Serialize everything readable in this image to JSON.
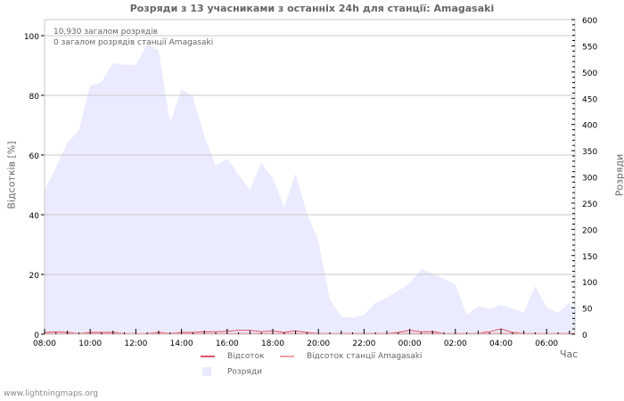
{
  "title": "Розряди з 13 учасниками з останніх 24h для станції: Amagasaki",
  "annotations": {
    "total_strikes": "10,930 загалом розрядів",
    "station_strikes": "0 загалом розрядів станції Amagasaki"
  },
  "axes": {
    "left_label": "Відсотків   [%]",
    "right_label": "Розряди",
    "x_label": "Час"
  },
  "legend": {
    "percent": "Відсоток",
    "station_percent": "Відсоток станції Amagasaki",
    "strikes": "Розряди"
  },
  "watermark": "www.lightningmaps.org",
  "colors": {
    "area": "#ebebff",
    "percent_line": "#dd5566",
    "station_line": "#f4a0a8",
    "grid": "#c8c8c8"
  },
  "chart_data": {
    "type": "area",
    "title": "Розряди з 13 учасниками з останніх 24h для станції: Amagasaki",
    "xlabel": "Час",
    "ylabel": "Відсотків [%]",
    "y2label": "Розряди",
    "ylim": [
      0,
      105
    ],
    "y2lim": [
      0,
      600
    ],
    "x_tick_labels": [
      "08:00",
      "10:00",
      "12:00",
      "14:00",
      "16:00",
      "18:00",
      "20:00",
      "22:00",
      "00:00",
      "02:00",
      "04:00",
      "06:00"
    ],
    "y_ticks": [
      0,
      20,
      40,
      60,
      80,
      100
    ],
    "y2_ticks": [
      0,
      50,
      100,
      150,
      200,
      250,
      300,
      350,
      400,
      450,
      500,
      550,
      600
    ],
    "grid": true,
    "legend_position": "bottom",
    "x": [
      "08:00",
      "08:30",
      "09:00",
      "09:30",
      "10:00",
      "10:30",
      "11:00",
      "11:30",
      "12:00",
      "12:30",
      "13:00",
      "13:30",
      "14:00",
      "14:30",
      "15:00",
      "15:30",
      "16:00",
      "16:30",
      "17:00",
      "17:30",
      "18:00",
      "18:30",
      "19:00",
      "19:30",
      "20:00",
      "20:30",
      "21:00",
      "21:30",
      "22:00",
      "22:30",
      "23:00",
      "23:30",
      "00:00",
      "00:30",
      "01:00",
      "01:30",
      "02:00",
      "02:30",
      "03:00",
      "03:30",
      "04:00",
      "04:30",
      "05:00",
      "05:30",
      "06:00",
      "06:30",
      "07:00",
      "07:15"
    ],
    "series": [
      {
        "name": "Розряди",
        "axis": "right",
        "values": [
          275,
          318,
          366,
          388,
          474,
          481,
          517,
          514,
          514,
          553,
          541,
          403,
          468,
          454,
          378,
          321,
          335,
          304,
          275,
          327,
          298,
          243,
          306,
          230,
          179,
          66,
          34,
          31,
          37,
          60,
          70,
          83,
          97,
          124,
          116,
          105,
          95,
          37,
          53,
          49,
          56,
          49,
          41,
          92,
          51,
          41,
          60,
          51
        ]
      },
      {
        "name": "Відсоток",
        "axis": "left",
        "values": [
          0.2,
          0.5,
          0.3,
          0,
          0.3,
          0.3,
          0.3,
          0,
          0,
          0,
          0.3,
          0,
          0.3,
          0.3,
          0.5,
          0.5,
          0.7,
          1.0,
          1.0,
          0.5,
          0.8,
          0.3,
          0.8,
          0.3,
          0,
          0,
          0,
          0,
          0,
          0,
          0,
          0.3,
          1.0,
          0.5,
          0.5,
          0,
          0,
          0,
          0,
          0.5,
          1.5,
          0.3,
          0,
          0,
          0,
          0,
          0,
          0
        ]
      },
      {
        "name": "Відсоток станції Amagasaki",
        "axis": "left",
        "values": [
          0,
          0,
          0,
          0,
          0,
          0,
          0,
          0,
          0,
          0,
          0,
          0,
          0,
          0,
          0,
          0,
          0,
          0,
          0,
          0,
          0,
          0,
          0,
          0,
          0,
          0,
          0,
          0,
          0,
          0,
          0,
          0,
          0,
          0,
          0,
          0,
          0,
          0,
          0,
          0,
          0,
          0,
          0,
          0,
          0,
          0,
          0,
          0
        ]
      }
    ]
  }
}
